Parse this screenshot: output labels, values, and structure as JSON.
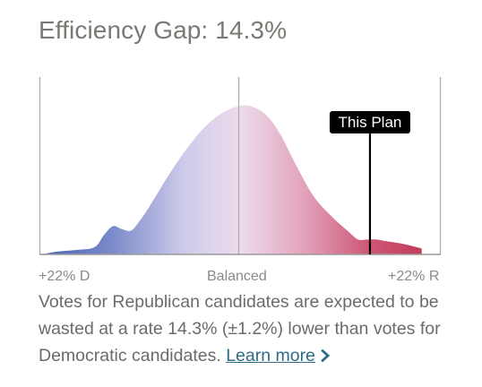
{
  "title": "Efficiency Gap: 14.3%",
  "chart_data": {
    "type": "area",
    "title": "Efficiency Gap: 14.3%",
    "xlabel": "",
    "ylabel": "",
    "xlim": [
      -22,
      22
    ],
    "x_tick_labels": [
      "+22% D",
      "Balanced",
      "+22% R"
    ],
    "center_label": "Balanced",
    "marker": {
      "label": "This Plan",
      "x": 14.3
    },
    "distribution_x": [
      -22,
      -20,
      -18,
      -16,
      -15,
      -14,
      -13,
      -12,
      -11,
      -10,
      -9,
      -8,
      -6,
      -4,
      -2,
      0,
      1.5,
      3,
      4.5,
      6,
      8,
      10,
      12,
      13,
      14,
      15,
      16,
      18,
      20
    ],
    "distribution_y": [
      0.0,
      0.02,
      0.03,
      0.05,
      0.13,
      0.19,
      0.17,
      0.16,
      0.23,
      0.32,
      0.42,
      0.52,
      0.7,
      0.85,
      0.95,
      1.0,
      0.99,
      0.93,
      0.8,
      0.62,
      0.4,
      0.26,
      0.15,
      0.1,
      0.1,
      0.1,
      0.09,
      0.07,
      0.04
    ],
    "grid": false
  },
  "description": {
    "text": "Votes for Republican candidates are expected to be wasted at a rate 14.3% (±1.2%) lower than votes for Democratic candidates.",
    "link_label": "Learn more"
  },
  "colors": {
    "dem": "#5b71bd",
    "neutral": "#e6e1f0",
    "rep": "#c4395a",
    "title": "#7a7a74"
  }
}
